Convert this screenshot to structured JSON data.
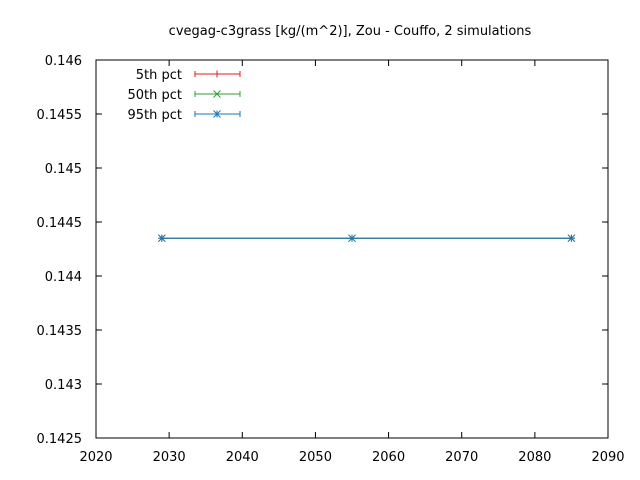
{
  "chart_data": {
    "type": "line",
    "title": "cvegag-c3grass [kg/(m^2)], Zou - Couffo, 2 simulations",
    "xlabel": "",
    "ylabel": "",
    "xlim": [
      2020,
      2090
    ],
    "ylim": [
      0.1425,
      0.146
    ],
    "x_ticks": [
      2020,
      2030,
      2040,
      2050,
      2060,
      2070,
      2080,
      2090
    ],
    "y_ticks": [
      0.1425,
      0.143,
      0.1435,
      0.144,
      0.1445,
      0.145,
      0.1455,
      0.146
    ],
    "grid": false,
    "legend_position": "top-left",
    "series": [
      {
        "name": "5th pct",
        "color": "#e41a1c",
        "marker": "plus",
        "x": [
          2029,
          2055,
          2085
        ],
        "y": [
          0.14435,
          0.14435,
          0.14435
        ]
      },
      {
        "name": "50th pct",
        "color": "#2ca02c",
        "marker": "cross",
        "x": [
          2029,
          2055,
          2085
        ],
        "y": [
          0.14435,
          0.14435,
          0.14435
        ]
      },
      {
        "name": "95th pct",
        "color": "#1f77b4",
        "marker": "asterisk",
        "x": [
          2029,
          2055,
          2085
        ],
        "y": [
          0.14435,
          0.14435,
          0.14435
        ]
      }
    ]
  }
}
